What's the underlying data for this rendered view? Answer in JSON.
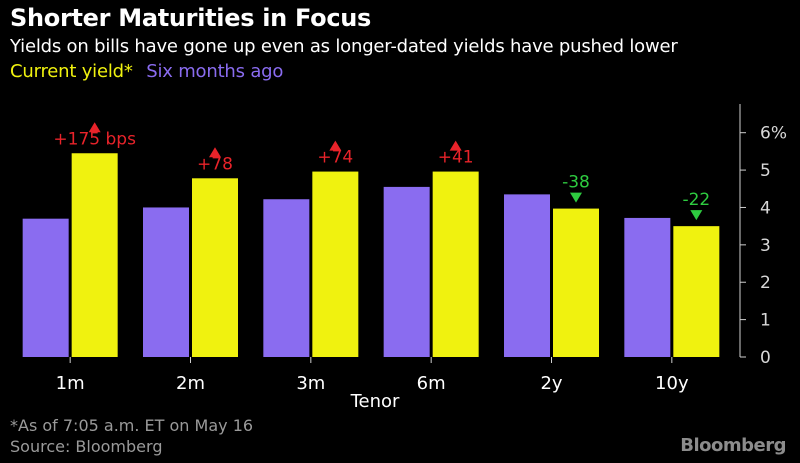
{
  "chart_data": {
    "type": "bar",
    "title": "Shorter Maturities in Focus",
    "subtitle": "Yields on bills have gone up even as longer-dated yields have pushed lower",
    "xlabel": "Tenor",
    "ylabel": "",
    "ylim": [
      0,
      6.5
    ],
    "yticks": [
      0,
      1,
      2,
      3,
      4,
      5,
      6
    ],
    "ytick_labels": [
      "0",
      "1",
      "2",
      "3",
      "4",
      "5",
      "6%"
    ],
    "categories": [
      "1m",
      "2m",
      "3m",
      "6m",
      "2y",
      "10y"
    ],
    "series": [
      {
        "name": "Six months ago",
        "color": "#8a6cf0",
        "values": [
          3.7,
          4.0,
          4.22,
          4.55,
          4.35,
          3.72
        ]
      },
      {
        "name": "Current yield*",
        "color": "#f0f20f",
        "values": [
          5.45,
          4.78,
          4.96,
          4.96,
          3.97,
          3.5
        ]
      }
    ],
    "annotations": [
      {
        "text": "+175 bps",
        "direction": "up",
        "color": "#e8232a"
      },
      {
        "text": "+78",
        "direction": "up",
        "color": "#e8232a"
      },
      {
        "text": "+74",
        "direction": "up",
        "color": "#e8232a"
      },
      {
        "text": "+41",
        "direction": "up",
        "color": "#e8232a"
      },
      {
        "text": "-38",
        "direction": "down",
        "color": "#2ecc40"
      },
      {
        "text": "-22",
        "direction": "down",
        "color": "#2ecc40"
      }
    ],
    "grid": false,
    "legend": "top-left"
  },
  "legend": {
    "current": "Current yield*",
    "previous": "Six months ago"
  },
  "footnote": "*As of 7:05 a.m. ET on May 16",
  "source": "Source: Bloomberg",
  "brand": "Bloomberg"
}
